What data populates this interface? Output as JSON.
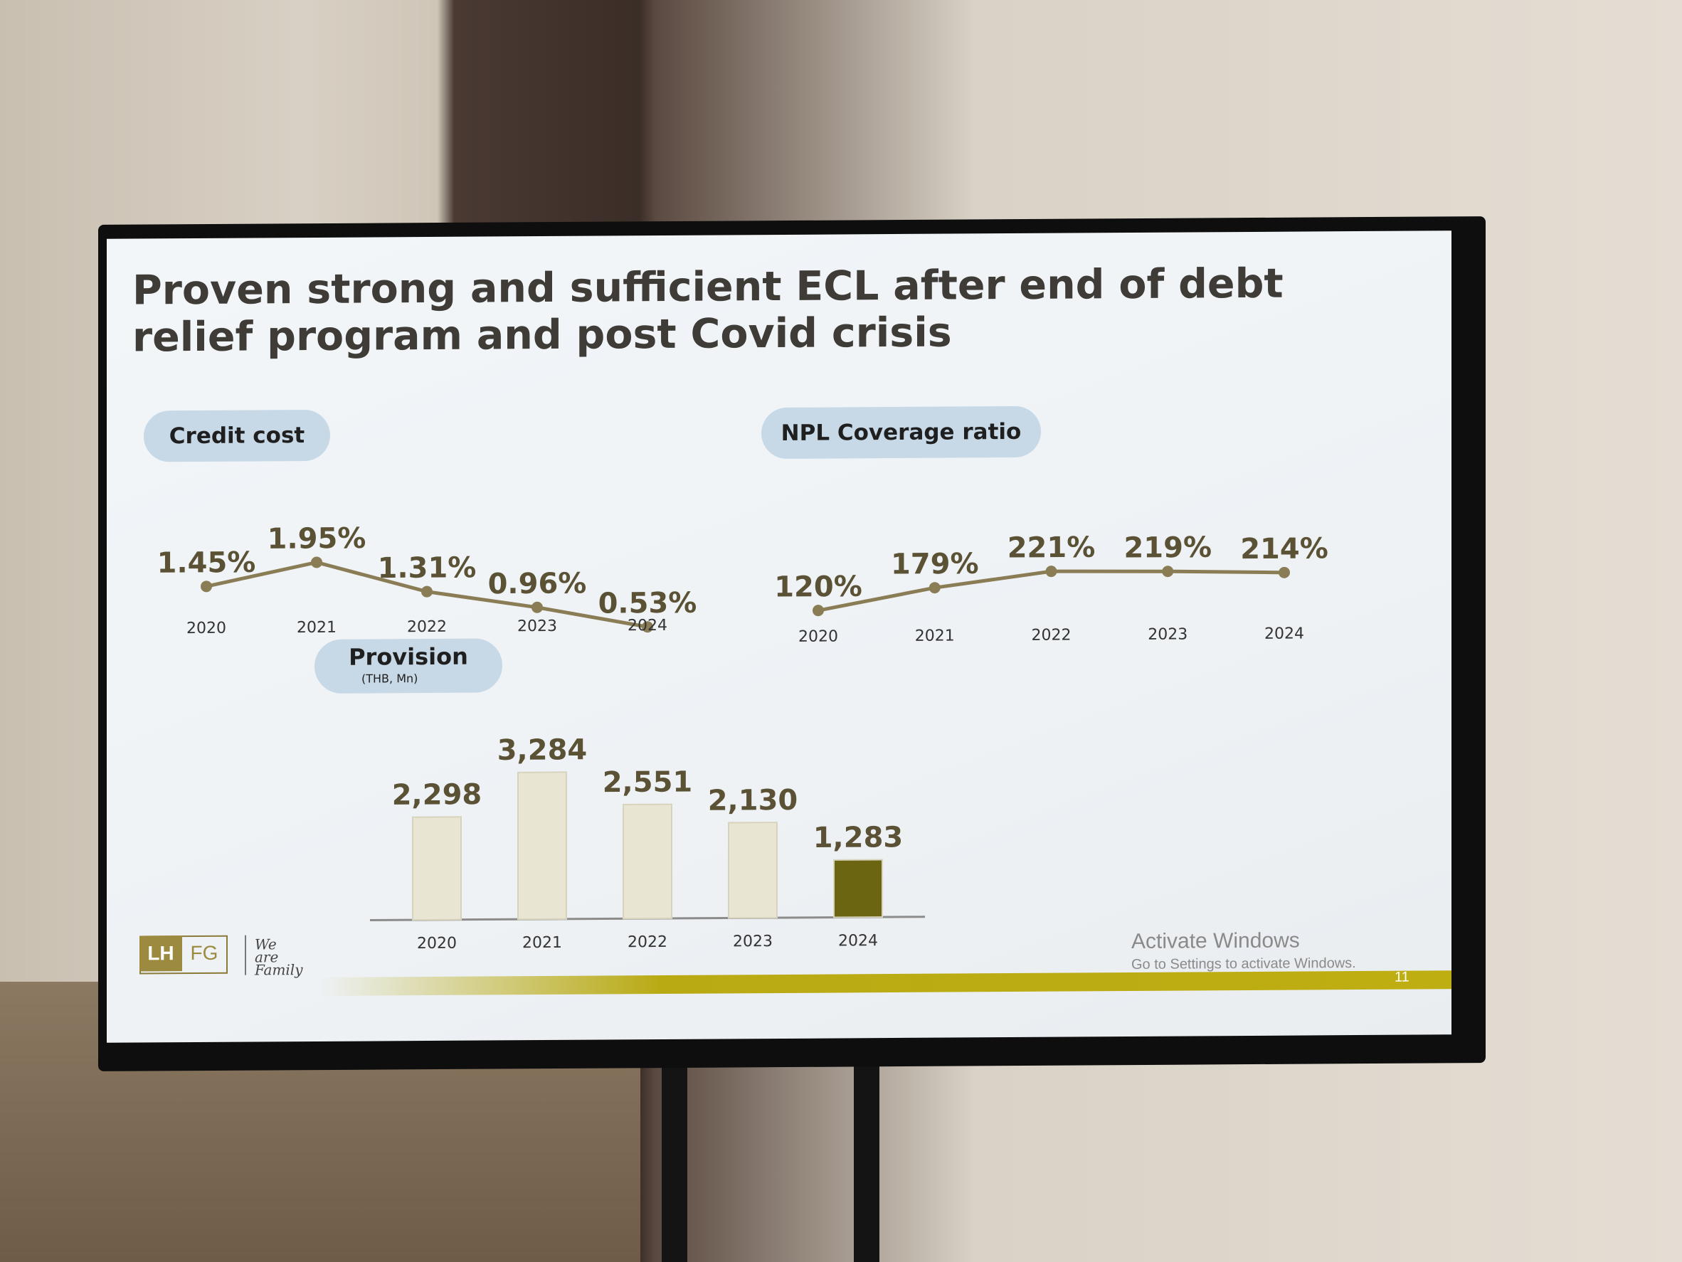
{
  "slide": {
    "title": "Proven strong and sufficient ECL after end of debt relief program and post Covid crisis",
    "page_number": "11"
  },
  "credit_cost": {
    "label": "Credit cost"
  },
  "npl": {
    "label": "NPL Coverage ratio"
  },
  "provision": {
    "label": "Provision",
    "unit": "(THB, Mn)"
  },
  "logo": {
    "left": "LH",
    "right": "FG",
    "slogan": "We are Family"
  },
  "watermark": {
    "title": "Activate Windows",
    "subtitle": "Go to Settings to activate Windows."
  },
  "colors": {
    "line": "#8a7d55",
    "bar_light": "#e9e5d3",
    "bar_highlight": "#6b6512",
    "label": "#5b5235",
    "pill": "#c7d8e6",
    "footer_bar": "#bfae12"
  },
  "chart_data": [
    {
      "type": "line",
      "title": "Credit cost",
      "categories": [
        "2020",
        "2021",
        "2022",
        "2023",
        "2024"
      ],
      "values": [
        1.45,
        1.95,
        1.31,
        0.96,
        0.53
      ],
      "data_labels": [
        "1.45%",
        "1.95%",
        "1.31%",
        "0.96%",
        "0.53%"
      ],
      "ylim": [
        0,
        2.2
      ],
      "grid": false
    },
    {
      "type": "line",
      "title": "NPL Coverage ratio",
      "categories": [
        "2020",
        "2021",
        "2022",
        "2023",
        "2024"
      ],
      "values": [
        120,
        179,
        221,
        219,
        214
      ],
      "data_labels": [
        "120%",
        "179%",
        "221%",
        "219%",
        "214%"
      ],
      "ylim": [
        60,
        260
      ],
      "grid": false
    },
    {
      "type": "bar",
      "title": "Provision",
      "subtitle": "(THB, Mn)",
      "categories": [
        "2020",
        "2021",
        "2022",
        "2023",
        "2024"
      ],
      "values": [
        2298,
        3284,
        2551,
        2130,
        1283
      ],
      "data_labels": [
        "2,298",
        "3,284",
        "2,551",
        "2,130",
        "1,283"
      ],
      "highlight_index": 4,
      "ylim": [
        0,
        3500
      ],
      "grid": false
    }
  ]
}
